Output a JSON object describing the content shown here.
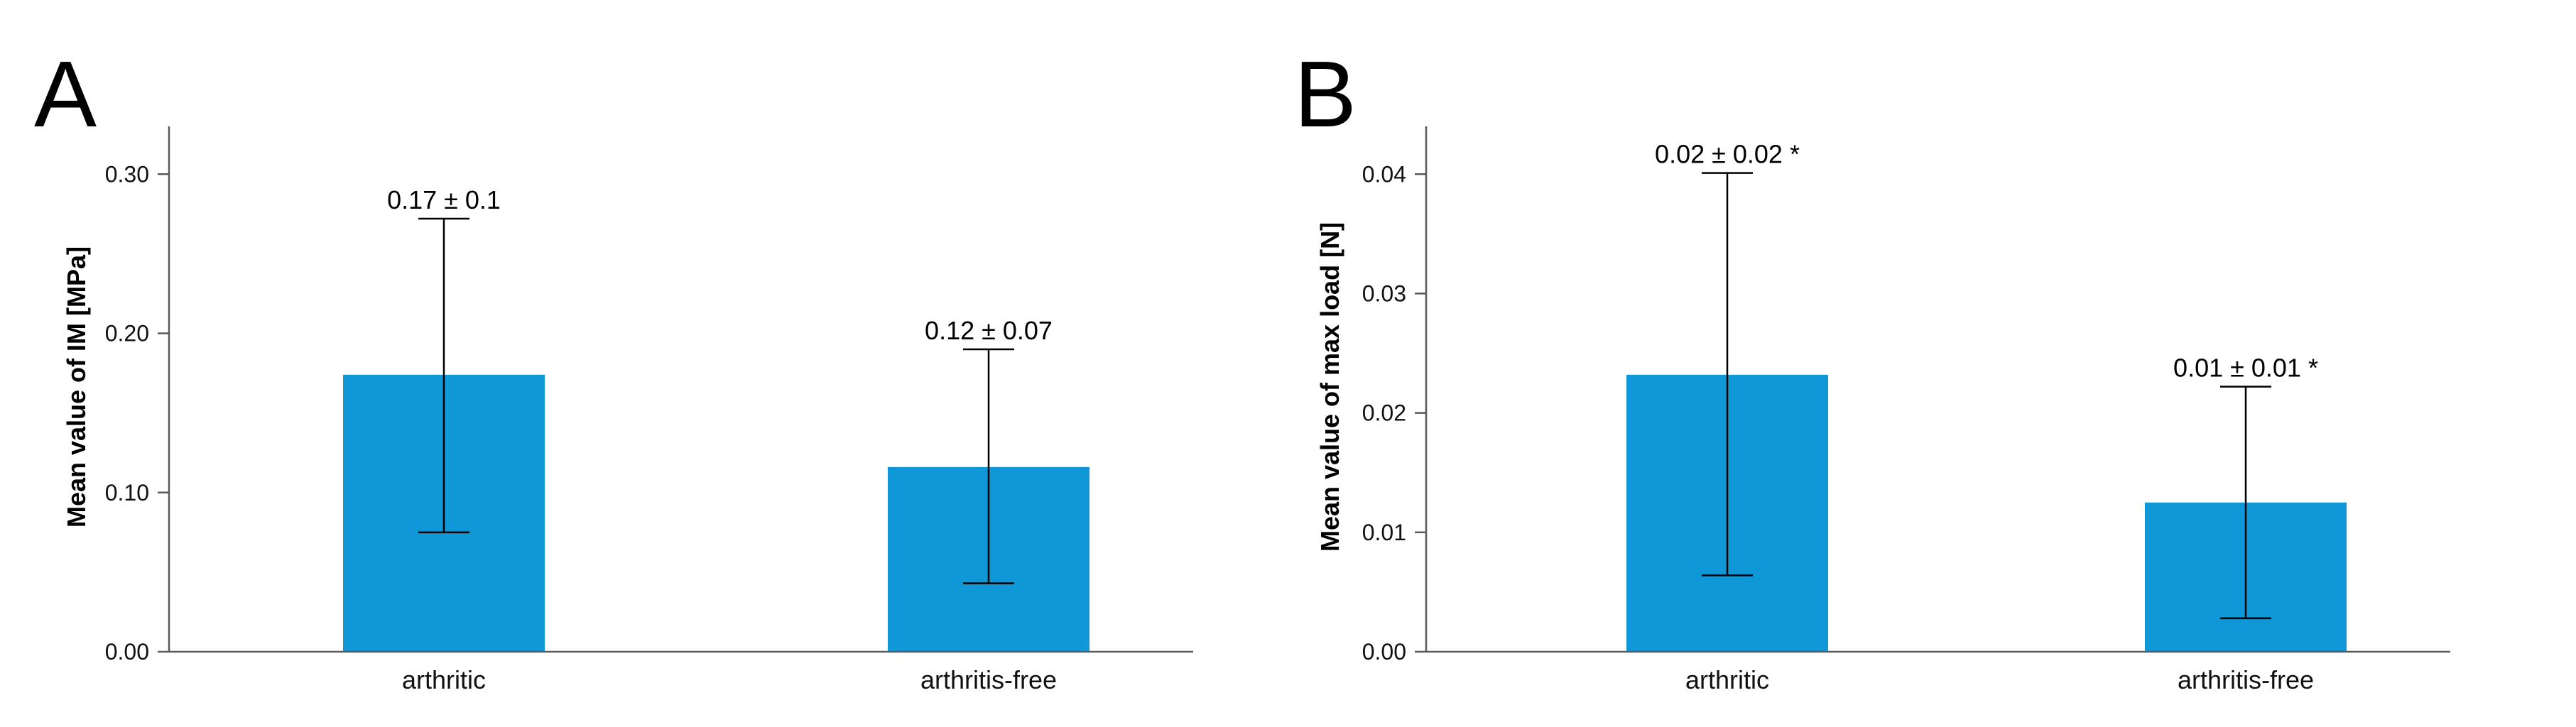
{
  "chart_data": [
    {
      "type": "bar",
      "panel": "A",
      "ylabel": "Mean value of IM [MPa]",
      "xlabel": "",
      "ylim": [
        0,
        0.33
      ],
      "yticks": [
        0.0,
        0.1,
        0.2,
        0.3
      ],
      "ytick_labels": [
        "0.00",
        "0.10",
        "0.20",
        "0.30"
      ],
      "categories": [
        "arthritic",
        "arthritis-free"
      ],
      "values": [
        0.174,
        0.116
      ],
      "err_low": [
        0.075,
        0.043
      ],
      "err_high": [
        0.272,
        0.19
      ],
      "data_labels": [
        "0.17 ± 0.1",
        "0.12 ± 0.07"
      ],
      "color": "#0f97d8"
    },
    {
      "type": "bar",
      "panel": "B",
      "ylabel": "Mean value of max load [N]",
      "xlabel": "",
      "ylim": [
        0,
        0.044
      ],
      "yticks": [
        0.0,
        0.01,
        0.02,
        0.03,
        0.04
      ],
      "ytick_labels": [
        "0.00",
        "0.01",
        "0.02",
        "0.03",
        "0.04"
      ],
      "categories": [
        "arthritic",
        "arthritis-free"
      ],
      "values": [
        0.0232,
        0.0125
      ],
      "err_low": [
        0.0064,
        0.0028
      ],
      "err_high": [
        0.0401,
        0.0222
      ],
      "data_labels": [
        "0.02 ± 0.02 *",
        "0.01 ± 0.01 *"
      ],
      "color": "#0f97d8"
    }
  ]
}
